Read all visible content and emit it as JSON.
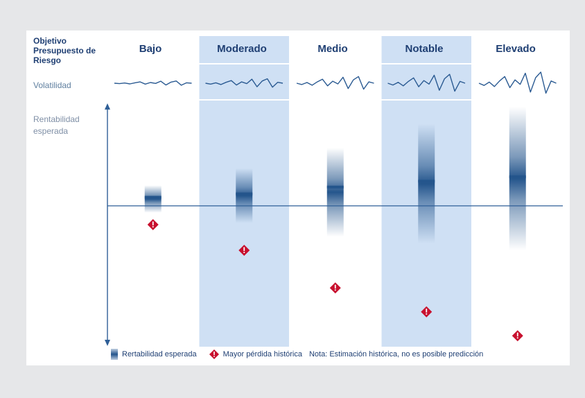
{
  "header": {
    "objective_label": "Objetivo Presupuesto de Riesgo",
    "volatility_label": "Volatilidad",
    "return_label": "Rentabilidad esperada"
  },
  "legend": {
    "expected_return": "Rertabilidad esperada",
    "max_loss": "Mayor pérdida histórica",
    "note": "Nota: Estimación histórica, no es posible predicción"
  },
  "colors": {
    "accent": "#1f3f73",
    "band_fill": "#cfe0f4",
    "bar": "#24558c",
    "loss_marker": "#c8102e",
    "baseline": "#2f5f97"
  },
  "icons": {
    "loss_marker": "exclamation-diamond-icon"
  },
  "chart_data": {
    "type": "range",
    "categories": [
      "Bajo",
      "Moderado",
      "Medio",
      "Notable",
      "Elevado"
    ],
    "highlighted_categories": [
      "Moderado",
      "Notable"
    ],
    "expected_return": {
      "top": [
        0.6,
        1.1,
        1.7,
        2.4,
        2.9
      ],
      "center": [
        0.25,
        0.35,
        0.55,
        0.72,
        0.85
      ],
      "bottom": [
        -0.2,
        -0.5,
        -0.9,
        -1.1,
        -1.3
      ]
    },
    "max_historical_loss": [
      -0.55,
      -1.3,
      -2.4,
      -3.1,
      -3.8
    ],
    "volatility_amplitude": [
      0.2,
      0.4,
      0.6,
      0.8,
      1.0
    ],
    "ylim": [
      -4.1,
      3.0
    ],
    "baseline": 0,
    "grid": false
  }
}
